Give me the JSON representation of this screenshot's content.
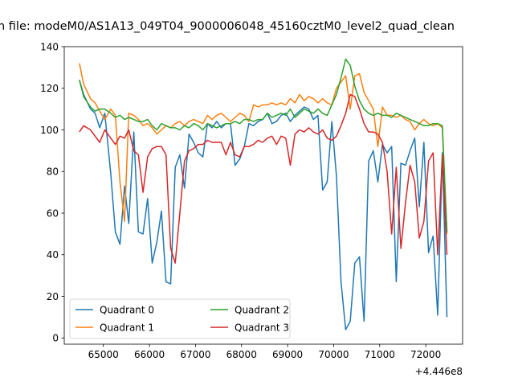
{
  "chart_data": {
    "type": "line",
    "title": "n file: modeM0/AS1A13_049T04_9000006048_45160cztM0_level2_quad_clean",
    "xlabel": "",
    "ylabel": "",
    "x_offset_label": "+4.446e8",
    "x_ticks": [
      65000,
      66000,
      67000,
      68000,
      69000,
      70000,
      71000,
      72000
    ],
    "y_ticks": [
      0,
      20,
      40,
      60,
      80,
      100,
      120,
      140
    ],
    "xlim": [
      64150,
      72800
    ],
    "ylim": [
      -3,
      140
    ],
    "grid": false,
    "legend_position": "lower-left",
    "legend_columns": 2,
    "x": [
      64480,
      64570,
      64720,
      64820,
      64920,
      65030,
      65160,
      65260,
      65360,
      65460,
      65550,
      65660,
      65760,
      65860,
      65960,
      66060,
      66160,
      66260,
      66360,
      66460,
      66560,
      66660,
      66760,
      66860,
      66960,
      67060,
      67160,
      67260,
      67360,
      67460,
      67560,
      67660,
      67760,
      67860,
      67960,
      68060,
      68160,
      68260,
      68360,
      68460,
      68560,
      68660,
      68760,
      68860,
      68960,
      69060,
      69160,
      69260,
      69360,
      69460,
      69560,
      69660,
      69760,
      69860,
      69960,
      70060,
      70160,
      70260,
      70360,
      70460,
      70560,
      70660,
      70760,
      70860,
      70960,
      71060,
      71160,
      71260,
      71360,
      71460,
      71560,
      71660,
      71760,
      71860,
      71960,
      72060,
      72160,
      72260,
      72360,
      72460
    ],
    "series": [
      {
        "name": "Quadrant 0",
        "color": "#1f77b4",
        "values": [
          124,
          117,
          110,
          108,
          101,
          108,
          79,
          51,
          45,
          73,
          55,
          99,
          51,
          50,
          67,
          36,
          46,
          61,
          27,
          26,
          82,
          88,
          72,
          98,
          94,
          89,
          87,
          103,
          101,
          104,
          101,
          103,
          103,
          83,
          86,
          92,
          103,
          102,
          104,
          105,
          108,
          103,
          104,
          107,
          108,
          104,
          107,
          109,
          111,
          110,
          105,
          107,
          71,
          75,
          104,
          78,
          27,
          4,
          8,
          36,
          39,
          8,
          85,
          90,
          75,
          93,
          89,
          92,
          27,
          84,
          83,
          90,
          96,
          63,
          94,
          41,
          49,
          11,
          89,
          10
        ]
      },
      {
        "name": "Quadrant 1",
        "color": "#ff7f0e",
        "values": [
          132,
          122,
          115,
          113,
          109,
          105,
          110,
          107,
          75,
          56,
          108,
          107,
          105,
          102,
          103,
          101,
          98,
          100,
          102,
          101,
          103,
          104,
          102,
          104,
          105,
          104,
          103,
          107,
          105,
          107,
          108,
          106,
          104,
          106,
          108,
          107,
          104,
          112,
          111,
          112,
          112,
          113,
          112,
          113,
          112,
          115,
          113,
          117,
          114,
          116,
          115,
          113,
          115,
          113,
          112,
          120,
          123,
          126,
          110,
          126,
          127,
          118,
          114,
          110,
          92,
          111,
          107,
          107,
          106,
          107,
          105,
          104,
          100,
          103,
          105,
          103,
          102,
          103,
          101,
          50
        ]
      },
      {
        "name": "Quadrant 2",
        "color": "#2ca02c",
        "values": [
          124,
          116,
          111,
          109,
          110,
          110,
          108,
          106,
          107,
          105,
          106,
          105,
          104,
          104,
          105,
          102,
          100,
          103,
          102,
          101,
          101,
          100,
          102,
          101,
          103,
          102,
          100,
          103,
          102,
          101,
          102,
          103,
          103,
          104,
          103,
          105,
          105,
          104,
          105,
          105,
          108,
          106,
          107,
          108,
          107,
          110,
          106,
          108,
          110,
          109,
          108,
          110,
          108,
          107,
          112,
          117,
          125,
          134,
          131,
          121,
          114,
          110,
          108,
          107,
          108,
          107,
          107,
          106,
          108,
          107,
          106,
          105,
          104,
          103,
          102,
          102,
          103,
          103,
          102,
          51
        ]
      },
      {
        "name": "Quadrant 3",
        "color": "#d62728",
        "values": [
          99,
          102,
          100,
          97,
          94,
          100,
          96,
          93,
          97,
          96,
          100,
          90,
          88,
          70,
          87,
          91,
          92,
          92,
          88,
          43,
          36,
          60,
          85,
          90,
          91,
          93,
          93,
          95,
          94,
          94,
          94,
          88,
          94,
          88,
          87,
          92,
          92,
          93,
          95,
          94,
          96,
          97,
          93,
          97,
          96,
          83,
          98,
          100,
          99,
          101,
          99,
          98,
          100,
          96,
          95,
          97,
          102,
          108,
          117,
          116,
          110,
          103,
          99,
          99,
          98,
          94,
          80,
          50,
          82,
          43,
          65,
          83,
          75,
          48,
          56,
          85,
          89,
          40,
          88,
          40
        ]
      }
    ]
  }
}
